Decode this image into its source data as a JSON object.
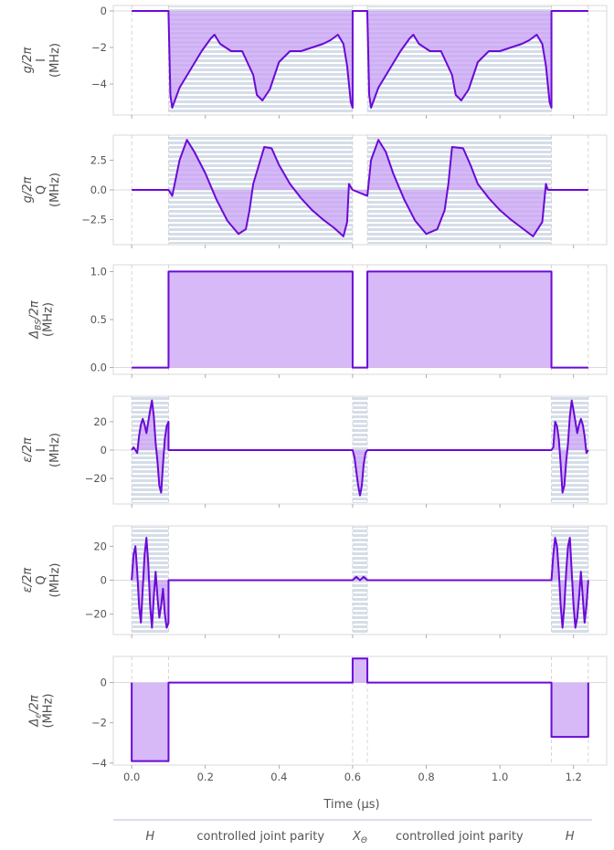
{
  "figure": {
    "xlabel": "Time (µs)",
    "sequence_labels": [
      {
        "text": "H",
        "italic": true,
        "x": 0.05
      },
      {
        "text": "controlled joint parity",
        "italic": false,
        "x": 0.35
      },
      {
        "text": "X",
        "sub": "Θ",
        "italic": true,
        "x": 0.62
      },
      {
        "text": "controlled joint parity",
        "italic": false,
        "x": 0.89
      },
      {
        "text": "H",
        "italic": true,
        "x": 1.19
      }
    ],
    "colors": {
      "line": "#6b0ad6",
      "fill": "#c9a2f5",
      "stripe": "#d5dde8",
      "vline": "#cccccc",
      "frame": "#d9d9d9"
    }
  },
  "chart_data": [
    {
      "type": "line",
      "panel": "g_I",
      "ylabel_parts": [
        {
          "t": "g/2π",
          "italic": true
        },
        {
          "t": "I"
        },
        {
          "t": "(MHz)"
        }
      ],
      "xlim": [
        -0.05,
        1.29
      ],
      "ylim": [
        -5.7,
        0.3
      ],
      "xticks": [
        0.0,
        0.2,
        0.4,
        0.6,
        0.8,
        1.0,
        1.2
      ],
      "yticks": [
        0,
        -2,
        -4
      ],
      "ytick_labels": [
        "0",
        "−2",
        "−4"
      ],
      "shaded_regions": [
        [
          0.1,
          0.6
        ],
        [
          0.64,
          1.14
        ]
      ],
      "x": [
        0.0,
        0.1,
        0.1,
        0.105,
        0.11,
        0.13,
        0.16,
        0.19,
        0.215,
        0.225,
        0.24,
        0.27,
        0.3,
        0.33,
        0.34,
        0.355,
        0.375,
        0.4,
        0.43,
        0.46,
        0.49,
        0.52,
        0.54,
        0.56,
        0.575,
        0.585,
        0.595,
        0.6,
        0.6,
        0.64,
        0.64,
        0.645,
        0.65,
        0.67,
        0.7,
        0.73,
        0.755,
        0.765,
        0.78,
        0.81,
        0.84,
        0.87,
        0.88,
        0.895,
        0.915,
        0.94,
        0.97,
        1.0,
        1.03,
        1.06,
        1.08,
        1.1,
        1.115,
        1.125,
        1.135,
        1.14,
        1.14,
        1.24
      ],
      "values": [
        0,
        0,
        -0.2,
        -4.6,
        -5.3,
        -4.2,
        -3.2,
        -2.2,
        -1.5,
        -1.3,
        -1.8,
        -2.2,
        -2.2,
        -3.5,
        -4.6,
        -4.9,
        -4.3,
        -2.8,
        -2.2,
        -2.2,
        -2.0,
        -1.8,
        -1.6,
        -1.3,
        -1.8,
        -3.0,
        -5.0,
        -5.3,
        0,
        0,
        -0.2,
        -4.6,
        -5.3,
        -4.2,
        -3.2,
        -2.2,
        -1.5,
        -1.3,
        -1.8,
        -2.2,
        -2.2,
        -3.5,
        -4.6,
        -4.9,
        -4.3,
        -2.8,
        -2.2,
        -2.2,
        -2.0,
        -1.8,
        -1.6,
        -1.3,
        -1.8,
        -3.0,
        -5.0,
        -5.3,
        0,
        0
      ]
    },
    {
      "type": "line",
      "panel": "g_Q",
      "ylabel_parts": [
        {
          "t": "g/2π",
          "italic": true
        },
        {
          "t": "Q"
        },
        {
          "t": "(MHz)"
        }
      ],
      "xlim": [
        -0.05,
        1.29
      ],
      "ylim": [
        -4.6,
        4.6
      ],
      "xticks": [
        0.0,
        0.2,
        0.4,
        0.6,
        0.8,
        1.0,
        1.2
      ],
      "yticks": [
        2.5,
        0.0,
        -2.5
      ],
      "ytick_labels": [
        "2.5",
        "0.0",
        "−2.5"
      ],
      "shaded_regions": [
        [
          0.1,
          0.6
        ],
        [
          0.64,
          1.14
        ]
      ],
      "x": [
        0.0,
        0.1,
        0.11,
        0.13,
        0.15,
        0.17,
        0.2,
        0.23,
        0.26,
        0.29,
        0.31,
        0.32,
        0.33,
        0.36,
        0.38,
        0.4,
        0.43,
        0.46,
        0.49,
        0.52,
        0.55,
        0.575,
        0.585,
        0.59,
        0.6,
        0.6,
        0.64,
        0.65,
        0.67,
        0.69,
        0.71,
        0.74,
        0.77,
        0.8,
        0.83,
        0.85,
        0.86,
        0.87,
        0.9,
        0.92,
        0.94,
        0.97,
        1.0,
        1.03,
        1.06,
        1.09,
        1.115,
        1.125,
        1.13,
        1.14,
        1.14,
        1.24
      ],
      "values": [
        0,
        0,
        -0.5,
        2.5,
        4.2,
        3.2,
        1.4,
        -0.8,
        -2.6,
        -3.7,
        -3.3,
        -1.7,
        0.5,
        3.6,
        3.5,
        2.1,
        0.5,
        -0.7,
        -1.7,
        -2.5,
        -3.2,
        -3.9,
        -2.7,
        0.5,
        0,
        0,
        -0.5,
        2.5,
        4.2,
        3.2,
        1.4,
        -0.8,
        -2.6,
        -3.7,
        -3.3,
        -1.7,
        0.5,
        3.6,
        3.5,
        2.1,
        0.5,
        -0.7,
        -1.7,
        -2.5,
        -3.2,
        -3.9,
        -2.7,
        0.5,
        0,
        0,
        0,
        0
      ]
    },
    {
      "type": "line",
      "panel": "delta_BS",
      "ylabel_parts": [
        {
          "t": "Δ",
          "sub": "BS",
          "tail": "/2π",
          "italic": true
        },
        {
          "t": "(MHz)"
        }
      ],
      "xlim": [
        -0.05,
        1.29
      ],
      "ylim": [
        -0.07,
        1.07
      ],
      "xticks": [
        0.0,
        0.2,
        0.4,
        0.6,
        0.8,
        1.0,
        1.2
      ],
      "yticks": [
        1.0,
        0.5,
        0.0
      ],
      "ytick_labels": [
        "1.0",
        "0.5",
        "0.0"
      ],
      "shaded_regions": [],
      "x": [
        0.0,
        0.1,
        0.1,
        0.6,
        0.6,
        0.64,
        0.64,
        1.14,
        1.14,
        1.24
      ],
      "values": [
        0,
        0,
        1,
        1,
        0,
        0,
        1,
        1,
        0,
        0
      ]
    },
    {
      "type": "line",
      "panel": "eps_I",
      "ylabel_parts": [
        {
          "t": "ε/2π",
          "italic": true
        },
        {
          "t": "I"
        },
        {
          "t": "(MHz)"
        }
      ],
      "xlim": [
        -0.05,
        1.29
      ],
      "ylim": [
        -38,
        38
      ],
      "xticks": [
        0.0,
        0.2,
        0.4,
        0.6,
        0.8,
        1.0,
        1.2
      ],
      "yticks": [
        20,
        0,
        -20
      ],
      "ytick_labels": [
        "20",
        "0",
        "−20"
      ],
      "shaded_regions": [
        [
          0.0,
          0.1
        ],
        [
          0.6,
          0.64
        ],
        [
          1.14,
          1.24
        ]
      ],
      "x": [
        0.0,
        0.005,
        0.01,
        0.015,
        0.02,
        0.025,
        0.03,
        0.035,
        0.04,
        0.045,
        0.05,
        0.055,
        0.06,
        0.065,
        0.07,
        0.075,
        0.08,
        0.085,
        0.09,
        0.095,
        0.1,
        0.1,
        0.6,
        0.605,
        0.61,
        0.615,
        0.62,
        0.625,
        0.63,
        0.635,
        0.64,
        1.14,
        1.145,
        1.15,
        1.155,
        1.16,
        1.165,
        1.17,
        1.175,
        1.18,
        1.185,
        1.19,
        1.195,
        1.2,
        1.205,
        1.21,
        1.215,
        1.22,
        1.225,
        1.23,
        1.235,
        1.24
      ],
      "values": [
        0,
        2,
        0,
        -2,
        10,
        18,
        22,
        18,
        12,
        20,
        28,
        35,
        24,
        5,
        -8,
        -25,
        -30,
        -10,
        8,
        17,
        20,
        0,
        0,
        -5,
        -15,
        -25,
        -32,
        -25,
        -10,
        -2,
        0,
        0,
        2,
        20,
        17,
        8,
        -10,
        -30,
        -25,
        -8,
        5,
        24,
        35,
        28,
        20,
        12,
        18,
        22,
        18,
        10,
        -2,
        0
      ]
    },
    {
      "type": "line",
      "panel": "eps_Q",
      "ylabel_parts": [
        {
          "t": "ε/2π",
          "italic": true
        },
        {
          "t": "Q"
        },
        {
          "t": "(MHz)"
        }
      ],
      "xlim": [
        -0.05,
        1.29
      ],
      "ylim": [
        -32,
        32
      ],
      "xticks": [
        0.0,
        0.2,
        0.4,
        0.6,
        0.8,
        1.0,
        1.2
      ],
      "yticks": [
        20,
        0,
        -20
      ],
      "ytick_labels": [
        "20",
        "0",
        "−20"
      ],
      "shaded_regions": [
        [
          0.0,
          0.1
        ],
        [
          0.6,
          0.64
        ],
        [
          1.14,
          1.24
        ]
      ],
      "x": [
        0.0,
        0.005,
        0.01,
        0.015,
        0.02,
        0.025,
        0.03,
        0.035,
        0.04,
        0.045,
        0.05,
        0.055,
        0.06,
        0.065,
        0.07,
        0.075,
        0.08,
        0.085,
        0.09,
        0.095,
        0.1,
        0.1,
        0.6,
        0.61,
        0.62,
        0.63,
        0.64,
        1.14,
        1.145,
        1.15,
        1.155,
        1.16,
        1.165,
        1.17,
        1.175,
        1.18,
        1.185,
        1.19,
        1.195,
        1.2,
        1.205,
        1.21,
        1.215,
        1.22,
        1.225,
        1.23,
        1.235,
        1.24
      ],
      "values": [
        0,
        15,
        20,
        5,
        -15,
        -25,
        -5,
        15,
        25,
        10,
        -15,
        -28,
        -10,
        5,
        -10,
        -22,
        -15,
        -5,
        -20,
        -28,
        -25,
        0,
        0,
        2,
        0,
        2,
        0,
        0,
        15,
        25,
        20,
        5,
        -15,
        -28,
        -15,
        5,
        20,
        25,
        5,
        -15,
        -28,
        -22,
        -10,
        5,
        -10,
        -25,
        -15,
        0
      ]
    },
    {
      "type": "line",
      "panel": "delta_eps",
      "ylabel_parts": [
        {
          "t": "Δ",
          "sub": "ε",
          "tail": "/2π",
          "italic": true
        },
        {
          "t": "(MHz)"
        }
      ],
      "xlim": [
        -0.05,
        1.29
      ],
      "ylim": [
        -4.1,
        1.3
      ],
      "xticks": [
        0.0,
        0.2,
        0.4,
        0.6,
        0.8,
        1.0,
        1.2
      ],
      "xtick_labels": [
        "0.0",
        "0.2",
        "0.4",
        "0.6",
        "0.8",
        "1.0",
        "1.2"
      ],
      "yticks": [
        0,
        -2,
        -4
      ],
      "ytick_labels": [
        "0",
        "−2",
        "−4"
      ],
      "shaded_regions": [],
      "x": [
        0.0,
        0.0,
        0.1,
        0.1,
        0.6,
        0.6,
        0.64,
        0.64,
        1.14,
        1.14,
        1.24,
        1.24
      ],
      "values": [
        0,
        -3.9,
        -3.9,
        0,
        0,
        1.2,
        1.2,
        0,
        0,
        -2.7,
        -2.7,
        0
      ]
    }
  ]
}
